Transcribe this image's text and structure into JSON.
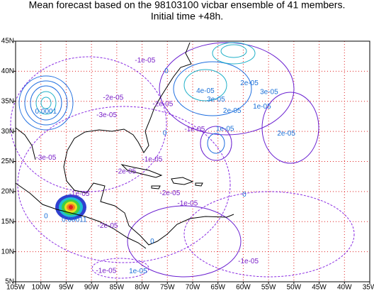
{
  "map": {
    "title": "Mean forecast based on the 98103100 vicbar ensemble of 41 members.",
    "subtitle": "Initial time +48h.",
    "lonlim": [
      -105,
      -35
    ],
    "latlim": [
      5,
      45
    ],
    "lonticks": [
      {
        "value": -105,
        "label": "105W"
      },
      {
        "value": -100,
        "label": "100W"
      },
      {
        "value": -95,
        "label": "95W"
      },
      {
        "value": -90,
        "label": "90W"
      },
      {
        "value": -85,
        "label": "85W"
      },
      {
        "value": -80,
        "label": "80W"
      },
      {
        "value": -75,
        "label": "75W"
      },
      {
        "value": -70,
        "label": "70W"
      },
      {
        "value": -65,
        "label": "65W"
      },
      {
        "value": -60,
        "label": "60W"
      },
      {
        "value": -55,
        "label": "55W"
      },
      {
        "value": -50,
        "label": "50W"
      },
      {
        "value": -45,
        "label": "45W"
      },
      {
        "value": -40,
        "label": "40W"
      },
      {
        "value": -35,
        "label": "35W"
      }
    ],
    "latticks": [
      {
        "value": 5,
        "label": "5N"
      },
      {
        "value": 10,
        "label": "10N"
      },
      {
        "value": 15,
        "label": "15N"
      },
      {
        "value": 20,
        "label": "20N"
      },
      {
        "value": 25,
        "label": "25N"
      },
      {
        "value": 30,
        "label": "30N"
      },
      {
        "value": 35,
        "label": "35N"
      },
      {
        "value": 40,
        "label": "40N"
      },
      {
        "value": 45,
        "label": "45N"
      }
    ],
    "grid": true,
    "contour_labels": [
      {
        "text": "-1e-05",
        "lon": -79.4,
        "lat": 41.8
      },
      {
        "text": "0",
        "lon": -75.2,
        "lat": 40
      },
      {
        "text": "0.0001",
        "lon": -99,
        "lat": 33.3
      },
      {
        "text": "-3e-05",
        "lon": -87,
        "lat": 32.7
      },
      {
        "text": "-2e-05",
        "lon": -85.7,
        "lat": 35.6
      },
      {
        "text": "-2e-05",
        "lon": -75.9,
        "lat": 34.5
      },
      {
        "text": "4e-05",
        "lon": -67.5,
        "lat": 36.7
      },
      {
        "text": "3e-05",
        "lon": -65.4,
        "lat": 35.3
      },
      {
        "text": "2e-05",
        "lon": -58.8,
        "lat": 38
      },
      {
        "text": "3e-05",
        "lon": -54.9,
        "lat": 36.5
      },
      {
        "text": "2e-05",
        "lon": -62.2,
        "lat": 33.4
      },
      {
        "text": "1e-05",
        "lon": -56.3,
        "lat": 34.1
      },
      {
        "text": "-1e-05",
        "lon": -69.6,
        "lat": 30.3
      },
      {
        "text": "1e-05",
        "lon": -63.6,
        "lat": 30.4
      },
      {
        "text": "2e-05",
        "lon": -51.5,
        "lat": 29.6
      },
      {
        "text": "0",
        "lon": -75.5,
        "lat": 29.7
      },
      {
        "text": "-3e-05",
        "lon": -99,
        "lat": 25.6
      },
      {
        "text": "-2e-05",
        "lon": -83.2,
        "lat": 23.3
      },
      {
        "text": "-1e-05",
        "lon": -78,
        "lat": 25.3
      },
      {
        "text": "-2e-05",
        "lon": -74.5,
        "lat": 19.7
      },
      {
        "text": "-1e-05",
        "lon": -71,
        "lat": 18
      },
      {
        "text": "0",
        "lon": -59.8,
        "lat": 19.5
      },
      {
        "text": "-1e-05",
        "lon": -92.4,
        "lat": 19.6
      },
      {
        "text": "0.00011",
        "lon": -93.4,
        "lat": 15.3
      },
      {
        "text": "0",
        "lon": -99,
        "lat": 15.9
      },
      {
        "text": "-2e-05",
        "lon": -86.8,
        "lat": 14.3
      },
      {
        "text": "0",
        "lon": -78,
        "lat": 11.7
      },
      {
        "text": "-1e-05",
        "lon": -59,
        "lat": 8.4
      },
      {
        "text": "-1e-05",
        "lon": -87.1,
        "lat": 6.8
      },
      {
        "text": "1e-05",
        "lon": -80.8,
        "lat": 6.7
      }
    ]
  }
}
